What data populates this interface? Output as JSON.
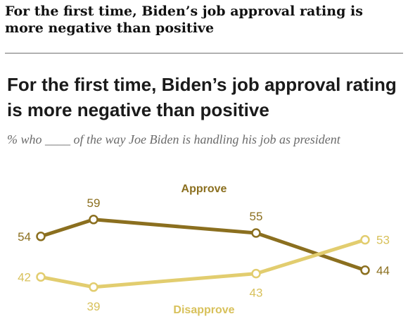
{
  "page": {
    "headline": "For the first time, Biden’s job approval rating is more negative than positive"
  },
  "colors": {
    "approve": "#8b6f1f",
    "disapprove": "#e2cd6f",
    "approve_text": "#8b6f1f",
    "disapprove_text": "#d8c15b"
  },
  "chart_data": {
    "type": "line",
    "title": "For the first time, Biden’s job approval rating is more negative than positive",
    "subtitle": "% who ____ of the way Joe Biden is handling his job as president",
    "xlabel": "",
    "ylabel": "",
    "x": [
      1,
      2,
      3,
      4
    ],
    "ylim": [
      30,
      65
    ],
    "grid": false,
    "series": [
      {
        "name": "Approve",
        "values": [
          54,
          59,
          55,
          44
        ],
        "labels": [
          "54",
          "59",
          "55",
          "44"
        ]
      },
      {
        "name": "Disapprove",
        "values": [
          42,
          39,
          43,
          53
        ],
        "labels": [
          "42",
          "39",
          "43",
          "53"
        ]
      }
    ]
  }
}
